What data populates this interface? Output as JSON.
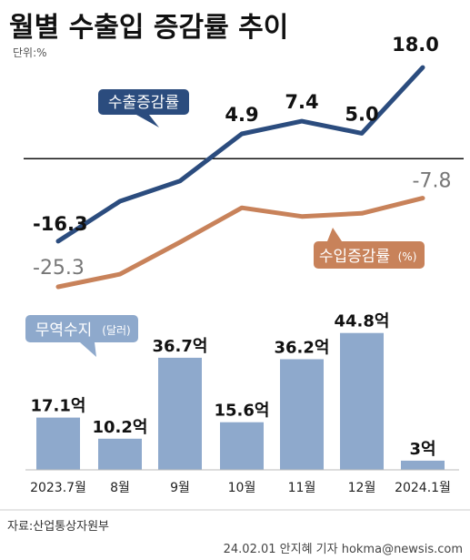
{
  "title": "월별 수출입 증감률 추이",
  "unit_label": "단위:%",
  "source": "자료:산업통상자원부",
  "credit": "24.02.01 안지혜 기자 hokma@newsis.com",
  "colors": {
    "export": "#2b4c7e",
    "import": "#c8825a",
    "bar": "#8ea9cc",
    "baseline": "#111111"
  },
  "chart_data": [
    {
      "type": "line",
      "categories": [
        "2023.7월",
        "8월",
        "9월",
        "10월",
        "11월",
        "12월",
        "2024.1월"
      ],
      "series": [
        {
          "name": "수출증감률",
          "values": [
            -16.3,
            -8.4,
            -4.4,
            4.9,
            7.4,
            5.0,
            18.0
          ],
          "labeled": [
            true,
            false,
            false,
            true,
            true,
            true,
            true
          ]
        },
        {
          "name": "수입증감률",
          "unit": "(%)",
          "values": [
            -25.3,
            -22.8,
            -16.5,
            -9.7,
            -11.4,
            -10.8,
            -7.8
          ],
          "labeled": [
            true,
            false,
            false,
            false,
            false,
            false,
            true
          ]
        }
      ],
      "value_labels": {
        "export": [
          "-16.3",
          "",
          "",
          "4.9",
          "7.4",
          "5.0",
          "18.0"
        ],
        "import": [
          "-25.3",
          "",
          "",
          "",
          "",
          "",
          "-7.8"
        ]
      },
      "ylim": [
        -28,
        20
      ],
      "zero_line": true,
      "grid": false
    },
    {
      "type": "bar",
      "title": "무역수지",
      "unit": "(달러)",
      "categories": [
        "2023.7월",
        "8월",
        "9월",
        "10월",
        "11월",
        "12월",
        "2024.1월"
      ],
      "values": [
        17.1,
        10.2,
        36.7,
        15.6,
        36.2,
        44.8,
        3
      ],
      "value_labels": [
        "17.1억",
        "10.2억",
        "36.7억",
        "15.6억",
        "36.2억",
        "44.8억",
        "3억"
      ],
      "ylim": [
        0,
        45
      ]
    }
  ]
}
